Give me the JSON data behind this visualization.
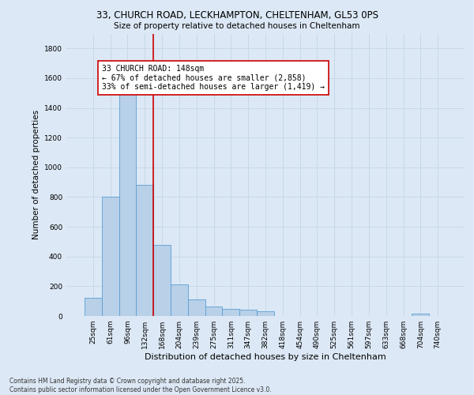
{
  "title_line1": "33, CHURCH ROAD, LECKHAMPTON, CHELTENHAM, GL53 0PS",
  "title_line2": "Size of property relative to detached houses in Cheltenham",
  "xlabel": "Distribution of detached houses by size in Cheltenham",
  "ylabel": "Number of detached properties",
  "footer": "Contains HM Land Registry data © Crown copyright and database right 2025.\nContains public sector information licensed under the Open Government Licence v3.0.",
  "categories": [
    "25sqm",
    "61sqm",
    "96sqm",
    "132sqm",
    "168sqm",
    "204sqm",
    "239sqm",
    "275sqm",
    "311sqm",
    "347sqm",
    "382sqm",
    "418sqm",
    "454sqm",
    "490sqm",
    "525sqm",
    "561sqm",
    "597sqm",
    "633sqm",
    "668sqm",
    "704sqm",
    "740sqm"
  ],
  "values": [
    120,
    800,
    1500,
    880,
    480,
    210,
    110,
    65,
    50,
    40,
    30,
    0,
    0,
    0,
    0,
    0,
    0,
    0,
    0,
    15,
    0
  ],
  "bar_color": "#b8d0e8",
  "bar_edge_color": "#5a9fd4",
  "annotation_text": "33 CHURCH ROAD: 148sqm\n← 67% of detached houses are smaller (2,858)\n33% of semi-detached houses are larger (1,419) →",
  "annotation_box_color": "#ffffff",
  "annotation_box_edge": "#cc0000",
  "vline_color": "#cc0000",
  "grid_color": "#c8d8e8",
  "background_color": "#dce8f5",
  "ylim": [
    0,
    1900
  ],
  "yticks": [
    0,
    200,
    400,
    600,
    800,
    1000,
    1200,
    1400,
    1600,
    1800
  ]
}
